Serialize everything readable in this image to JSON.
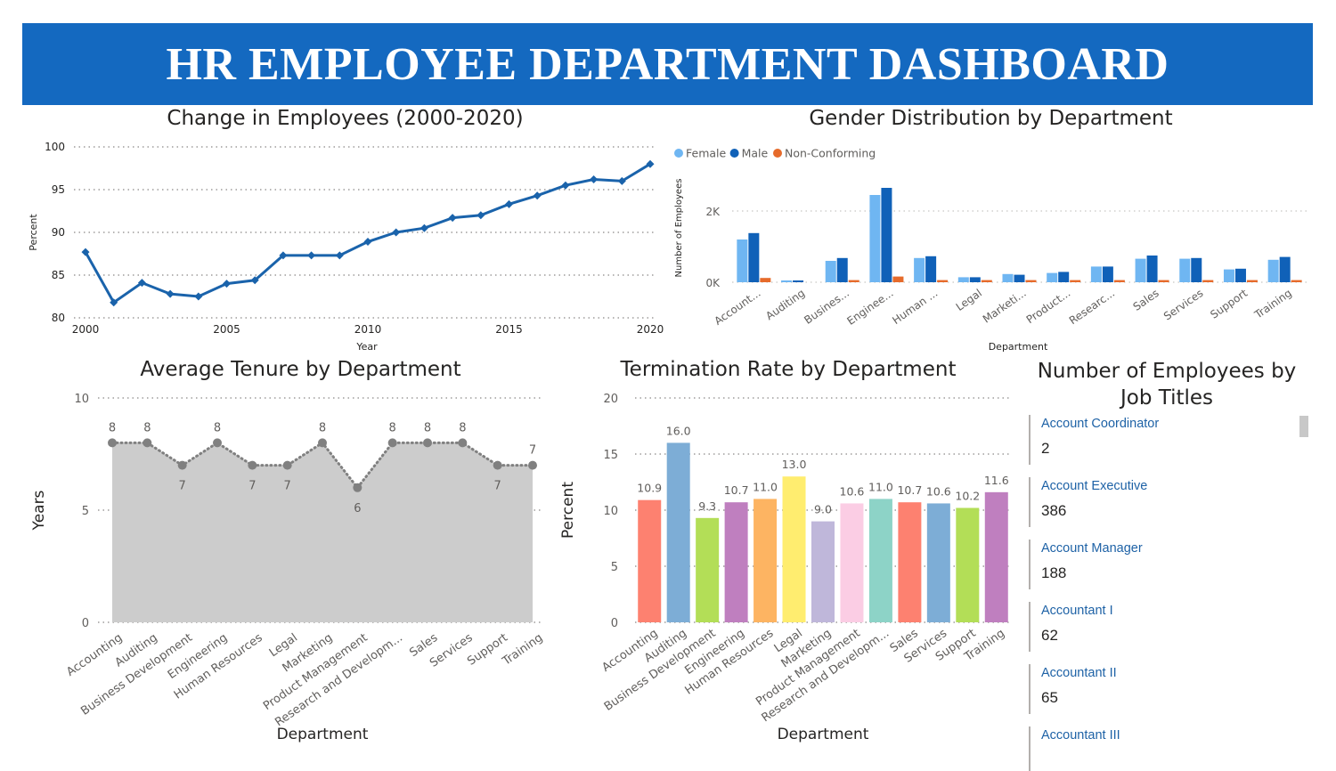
{
  "header": {
    "title": "HR EMPLOYEE DEPARTMENT DASHBOARD"
  },
  "colors": {
    "banner": "#1469c0",
    "line": "#1a63ab",
    "female": "#6fb6f2",
    "male": "#1061b8",
    "nonconforming": "#e66b2b",
    "area": "#cccccc",
    "areaLine": "#808080",
    "cardLabel": "#1e62a6"
  },
  "chart_data": [
    {
      "type": "line",
      "title": "Change in Employees (2000-2020)",
      "xlabel": "Year",
      "ylabel": "Percent",
      "x": [
        2000,
        2001,
        2002,
        2003,
        2004,
        2005,
        2006,
        2007,
        2008,
        2009,
        2010,
        2011,
        2012,
        2013,
        2014,
        2015,
        2016,
        2017,
        2018,
        2019,
        2020
      ],
      "values": [
        87.7,
        81.8,
        84.1,
        82.8,
        82.5,
        84.0,
        84.4,
        87.3,
        87.3,
        87.3,
        88.9,
        90.0,
        90.5,
        91.7,
        92.0,
        93.3,
        94.3,
        95.5,
        96.2,
        96.0,
        98.0
      ],
      "ylim": [
        80,
        100
      ],
      "yticks": [
        80,
        85,
        90,
        95,
        100
      ],
      "xticks": [
        2000,
        2005,
        2010,
        2015,
        2020
      ],
      "grid": true
    },
    {
      "type": "bar",
      "title": "Gender Distribution by Department",
      "xlabel": "Department",
      "ylabel": "Number of Employees",
      "categories": [
        "Account...",
        "Auditing",
        "Busines...",
        "Enginee...",
        "Human ...",
        "Legal",
        "Marketi...",
        "Product...",
        "Researc...",
        "Sales",
        "Services",
        "Support",
        "Training"
      ],
      "series": [
        {
          "name": "Female",
          "values": [
            1200,
            50,
            600,
            2450,
            680,
            140,
            230,
            260,
            440,
            660,
            660,
            360,
            630
          ]
        },
        {
          "name": "Male",
          "values": [
            1380,
            50,
            680,
            2650,
            730,
            140,
            210,
            290,
            440,
            750,
            680,
            380,
            710
          ]
        },
        {
          "name": "Non-Conforming",
          "values": [
            120,
            0,
            60,
            160,
            60,
            60,
            60,
            60,
            60,
            60,
            60,
            60,
            60
          ]
        }
      ],
      "ylim": [
        0,
        3000
      ],
      "yticks": [
        "0K",
        "2K"
      ],
      "legend": "top-left",
      "grid": true
    },
    {
      "type": "area",
      "title": "Average Tenure by Department",
      "xlabel": "Department",
      "ylabel": "Years",
      "categories": [
        "Accounting",
        "Auditing",
        "Business Development",
        "Engineering",
        "Human Resources",
        "Legal",
        "Marketing",
        "Product Management",
        "Research and Developm...",
        "Sales",
        "Services",
        "Support",
        "Training"
      ],
      "values": [
        8,
        8,
        7,
        8,
        7,
        7,
        8,
        6,
        8,
        8,
        8,
        7,
        7
      ],
      "labels": [
        "8",
        "8",
        "7",
        "8",
        "7",
        "7",
        "8",
        "6",
        "8",
        "8",
        "8",
        "7",
        "7"
      ],
      "ylim": [
        0,
        10
      ],
      "yticks": [
        0,
        5,
        10
      ],
      "grid": true
    },
    {
      "type": "bar",
      "title": "Termination Rate by Department",
      "xlabel": "Department",
      "ylabel": "Percent",
      "categories": [
        "Accounting",
        "Auditing",
        "Business Development",
        "Engineering",
        "Human Resources",
        "Legal",
        "Marketing",
        "Product Management",
        "Research and Developm...",
        "Sales",
        "Services",
        "Support",
        "Training"
      ],
      "values": [
        10.9,
        16.0,
        9.3,
        10.7,
        11.0,
        13.0,
        9.0,
        10.6,
        11.0,
        10.7,
        10.6,
        10.2,
        11.6
      ],
      "labels": [
        "10.9",
        "16.0",
        "9.3",
        "10.7",
        "11.0",
        "13.0",
        "9.0",
        "10.6",
        "11.0",
        "10.7",
        "10.6",
        "10.2",
        "11.6"
      ],
      "colors": [
        "#fd8170",
        "#7dadd6",
        "#b3de57",
        "#bf7fbf",
        "#fdb462",
        "#ffed6f",
        "#bfb7da",
        "#fbcde4",
        "#8dd3c7",
        "#fd8170",
        "#7dadd6",
        "#b3de57",
        "#bf7fbf"
      ],
      "ylim": [
        0,
        20
      ],
      "yticks": [
        0,
        5,
        10,
        15,
        20
      ],
      "grid": true
    }
  ],
  "job_titles": {
    "title": "Number of Employees by Job Titles",
    "items": [
      {
        "label": "Account Coordinator",
        "value": "2"
      },
      {
        "label": "Account Executive",
        "value": "386"
      },
      {
        "label": "Account Manager",
        "value": "188"
      },
      {
        "label": "Accountant I",
        "value": "62"
      },
      {
        "label": "Accountant II",
        "value": "65"
      },
      {
        "label": "Accountant III",
        "value": ""
      }
    ]
  }
}
